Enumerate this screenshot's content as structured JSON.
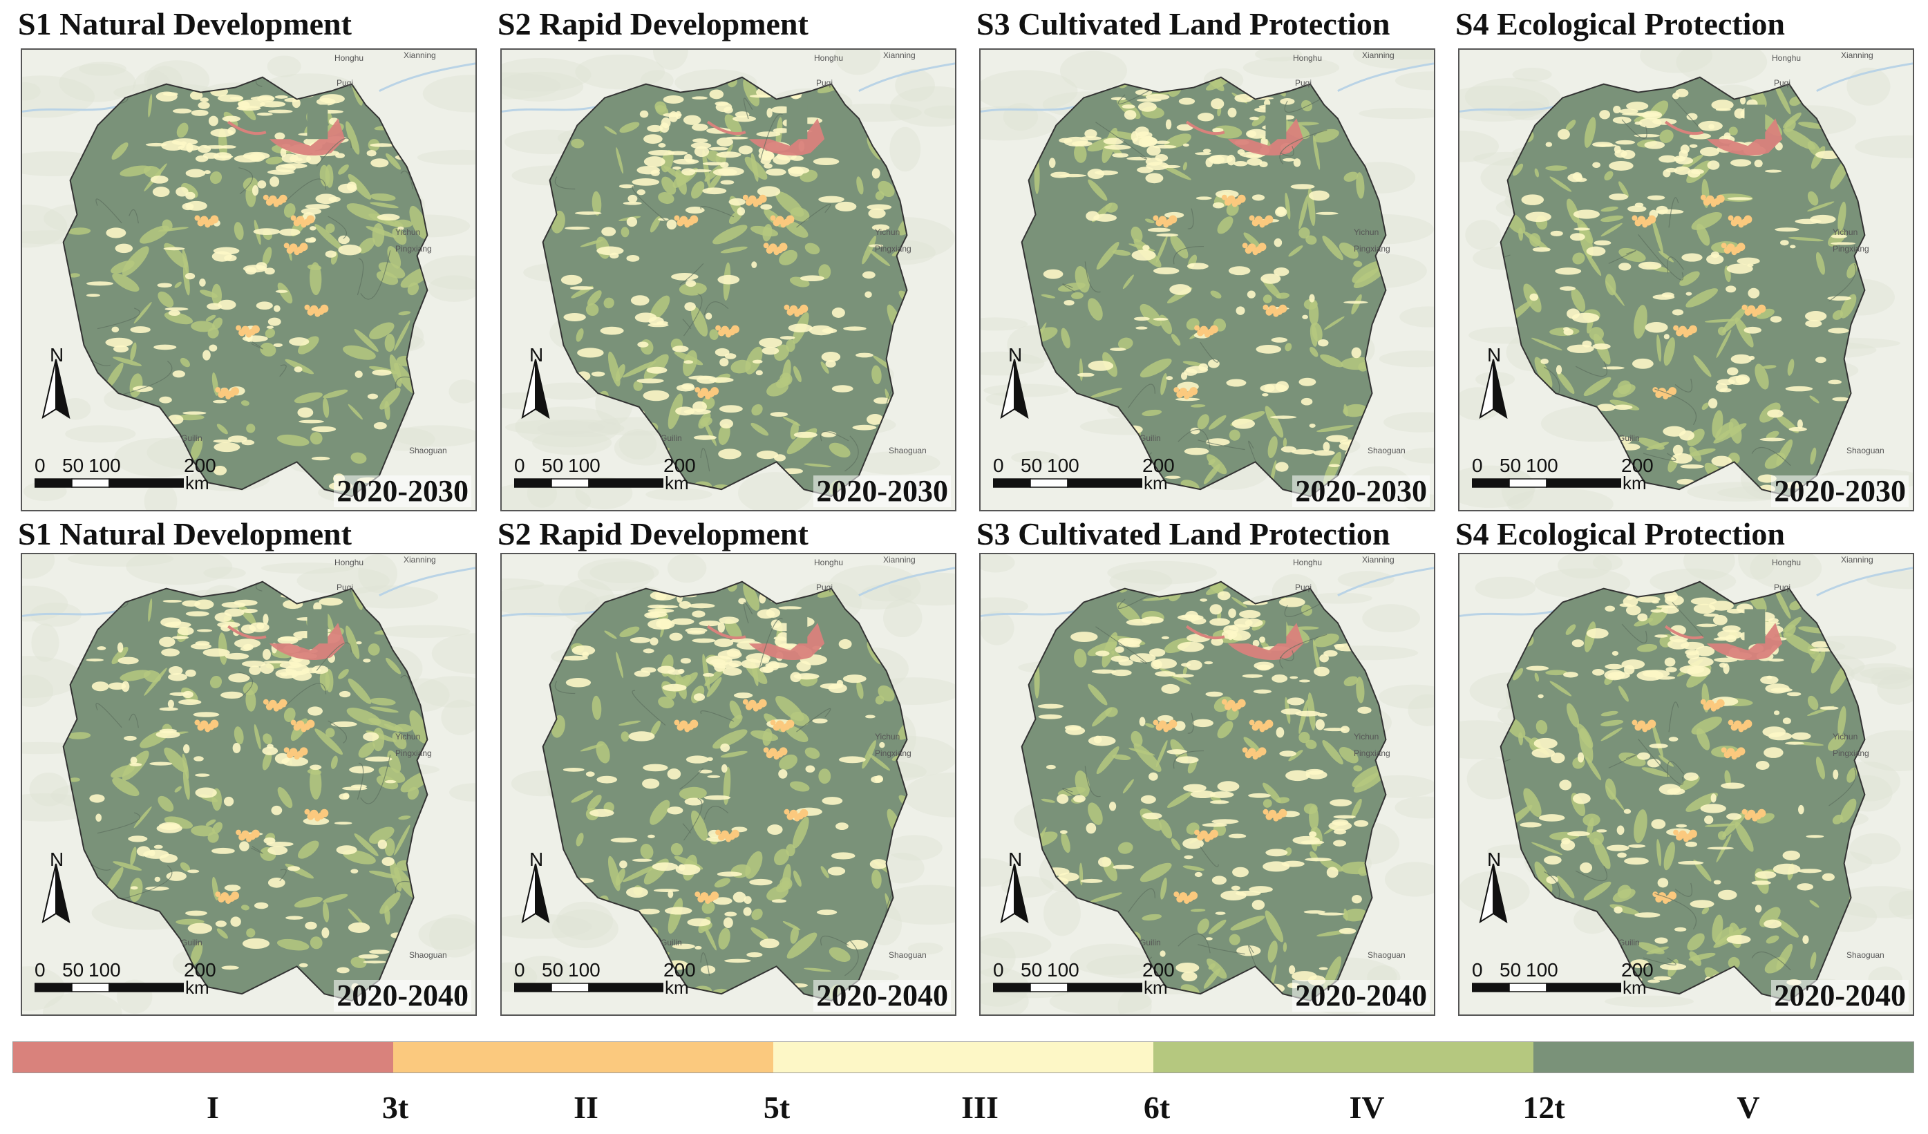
{
  "panels": [
    {
      "title": "S1 Natural Development",
      "period": "2020-2030"
    },
    {
      "title": "S2 Rapid Development",
      "period": "2020-2030"
    },
    {
      "title": "S3 Cultivated Land Protection",
      "period": "2020-2030"
    },
    {
      "title": "S4 Ecological Protection",
      "period": "2020-2030"
    },
    {
      "title": "S1 Natural Development",
      "period": "2020-2040"
    },
    {
      "title": "S2 Rapid Development",
      "period": "2020-2040"
    },
    {
      "title": "S3 Cultivated Land Protection",
      "period": "2020-2040"
    },
    {
      "title": "S4 Ecological Protection",
      "period": "2020-2040"
    }
  ],
  "map_labels": {
    "north": "N",
    "scale_ticks": [
      "0",
      "50",
      "100",
      "200"
    ],
    "scale_unit": "km",
    "cities": [
      "Honghu",
      "Xianning",
      "Puqi",
      "Yichun",
      "Pingxiang",
      "Guilin",
      "Shaoguan"
    ]
  },
  "legend": {
    "classes": [
      {
        "name": "I",
        "color": "#d9827c"
      },
      {
        "name": "II",
        "color": "#fbc97e"
      },
      {
        "name": "III",
        "color": "#fdf7c6"
      },
      {
        "name": "IV",
        "color": "#b5c87f"
      },
      {
        "name": "V",
        "color": "#7a9279"
      }
    ],
    "breaks": [
      "3t",
      "5t",
      "6t",
      "12t"
    ]
  }
}
